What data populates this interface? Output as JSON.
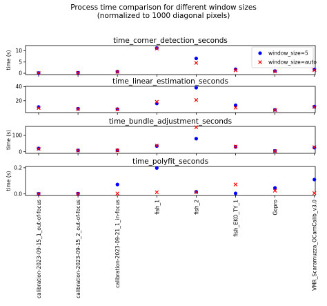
{
  "chart_data": {
    "type": "scatter",
    "suptitle": [
      "Process time comparison for different window sizes",
      "(normalized to 1000 diagonal pixels)"
    ],
    "categories": [
      "calibration-2023-09-15_1_out-of-focus",
      "calibration-2023-09-15_2_out-of-focus",
      "calibration-2023-09-21_1_in-focus",
      "fish_1",
      "fish_2",
      "fish_EKO_TY_1",
      "Gopro",
      "VMR_Scaramuzza_OCamCalib_v3.0"
    ],
    "legend": {
      "placement": "top-right",
      "entries": [
        {
          "label": "window_size=5",
          "marker": "circle",
          "color": "#0000ff"
        },
        {
          "label": "window_size=auto",
          "marker": "x",
          "color": "#ff0000"
        }
      ]
    },
    "panels": [
      {
        "title": "time_corner_detection_seconds",
        "ylabel": "time (s)",
        "ylim": [
          -0.6,
          12.3
        ],
        "yticks": [
          0,
          5,
          10
        ],
        "series": [
          {
            "name": "window_size=5",
            "values": [
              0.1,
              0.2,
              0.7,
              11.2,
              6.6,
              1.8,
              1.0,
              1.7
            ]
          },
          {
            "name": "window_size=auto",
            "values": [
              0.1,
              0.2,
              0.6,
              11.0,
              4.6,
              1.3,
              0.8,
              1.4
            ]
          }
        ]
      },
      {
        "title": "time_linear_estimation_seconds",
        "ylabel": "",
        "ylim": [
          3.0,
          40.5
        ],
        "yticks": [
          20,
          40
        ],
        "series": [
          {
            "name": "window_size=5",
            "values": [
              11.0,
              8.5,
              8.0,
              16.0,
              38.5,
              13.5,
              7.0,
              11.5
            ]
          },
          {
            "name": "window_size=auto",
            "values": [
              9.5,
              8.0,
              7.5,
              18.5,
              21.0,
              10.0,
              6.5,
              11.0
            ]
          }
        ]
      },
      {
        "title": "time_bundle_adjustment_seconds",
        "ylabel": "time (s)",
        "ylim": [
          -10,
          155
        ],
        "yticks": [
          0,
          100
        ],
        "series": [
          {
            "name": "window_size=5",
            "values": [
              20,
              8,
              9,
              35,
              80,
              30,
              5,
              25
            ]
          },
          {
            "name": "window_size=auto",
            "values": [
              18,
              7,
              8,
              38,
              150,
              32,
              4,
              28
            ]
          }
        ]
      },
      {
        "title": "time_polyfit_seconds",
        "ylabel": "time (s)",
        "ylim": [
          -0.012,
          0.21
        ],
        "yticks": [
          0.0,
          0.2
        ],
        "ytick_labels": [
          "0.0",
          "0.2"
        ],
        "series": [
          {
            "name": "window_size=5",
            "values": [
              0.001,
              0.002,
              0.072,
              0.198,
              0.016,
              0.004,
              0.046,
              0.11
            ]
          },
          {
            "name": "window_size=auto",
            "values": [
              0.001,
              0.001,
              0.003,
              0.013,
              0.013,
              0.072,
              0.025,
              0.006
            ]
          }
        ]
      }
    ]
  }
}
